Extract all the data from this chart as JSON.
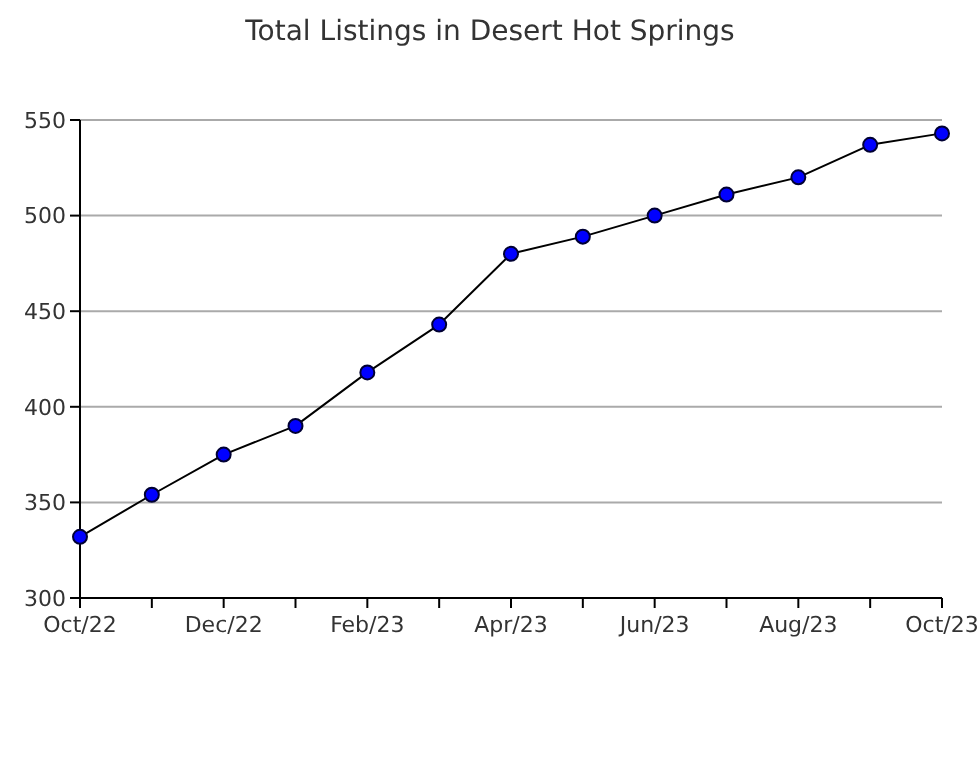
{
  "chart_data": {
    "type": "line",
    "title": "Total Listings in Desert Hot Springs",
    "categories": [
      "Oct/22",
      null,
      "Dec/22",
      null,
      "Feb/23",
      null,
      "Apr/23",
      null,
      "Jun/23",
      null,
      "Aug/23",
      null,
      "Oct/23"
    ],
    "series": [
      {
        "color": "#0000ff",
        "values": [
          332,
          354,
          375,
          390,
          418,
          443,
          480,
          489,
          500,
          511,
          520,
          537,
          543
        ]
      }
    ],
    "ylim": [
      300,
      550
    ],
    "yticks": [
      300,
      350,
      400,
      450,
      500,
      550
    ],
    "grid": "y",
    "marker": "circle",
    "line_style": "solid"
  }
}
